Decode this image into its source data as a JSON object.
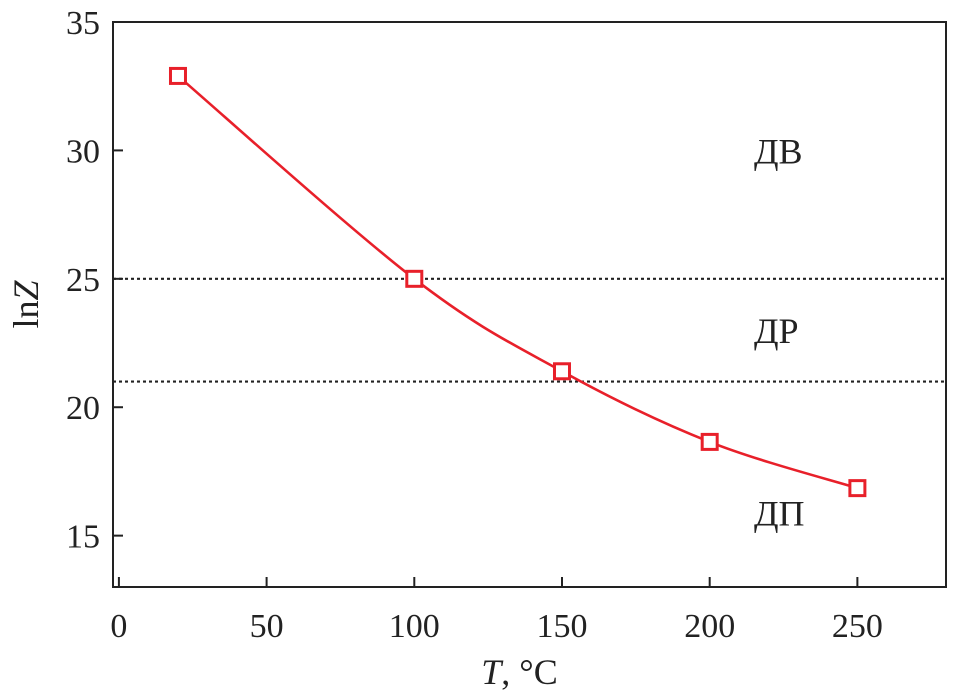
{
  "chart_data": {
    "type": "line",
    "title": "",
    "xlabel": {
      "italic": "T",
      "rest": ", °C"
    },
    "ylabel": {
      "plain": "ln",
      "italic": "Z"
    },
    "xlim": [
      -2,
      280
    ],
    "ylim": [
      13,
      35
    ],
    "xticks": [
      0,
      50,
      100,
      150,
      200,
      250
    ],
    "yticks": [
      15,
      20,
      25,
      30,
      35
    ],
    "grid": false,
    "series": [
      {
        "x": [
          20,
          100,
          150,
          200,
          250
        ],
        "y": [
          32.9,
          25.0,
          21.4,
          18.65,
          16.85
        ],
        "color": "#e8202a",
        "marker": "open-square"
      }
    ],
    "reference_lines": [
      {
        "orientation": "horizontal",
        "y": 25.0,
        "style": "dotted"
      },
      {
        "orientation": "horizontal",
        "y": 21.0,
        "style": "dotted"
      }
    ],
    "annotations": [
      {
        "text": "ДВ",
        "x": 215,
        "y": 30
      },
      {
        "text": "ДР",
        "x": 215,
        "y": 23
      },
      {
        "text": "ДП",
        "x": 215,
        "y": 15.9
      }
    ]
  }
}
